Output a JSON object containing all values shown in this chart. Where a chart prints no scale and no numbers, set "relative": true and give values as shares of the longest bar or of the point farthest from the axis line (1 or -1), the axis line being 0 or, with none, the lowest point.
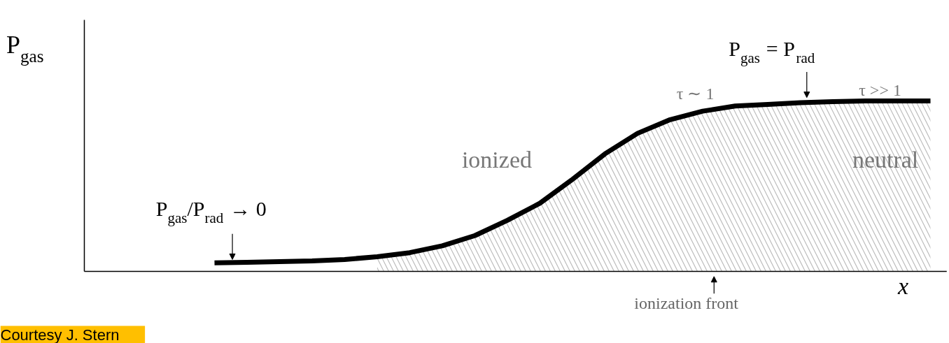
{
  "chart_data": {
    "type": "line",
    "relative": true,
    "xlabel": "x",
    "ylabel": "P$_{gas}$",
    "grid": false,
    "tick_labels": false,
    "categories": [
      null,
      null,
      null,
      null,
      null,
      null,
      null,
      null,
      null,
      null,
      null,
      null,
      null,
      null,
      null,
      null,
      null,
      null,
      null,
      null,
      null,
      null,
      null,
      null,
      null,
      null,
      null
    ],
    "series": [
      {
        "color": "#000000",
        "values": [
          null,
          null,
          null,
          null,
          0.05,
          0.053,
          0.057,
          0.061,
          0.07,
          0.086,
          0.11,
          0.15,
          0.21,
          0.3,
          0.4,
          0.54,
          0.69,
          0.81,
          0.89,
          0.94,
          0.97,
          0.98,
          0.99,
          0.996,
          1,
          1,
          1
        ]
      },
      {
        "type": "area",
        "color": "#bbbbbb",
        "values": [
          null,
          null,
          null,
          null,
          null,
          null,
          null,
          null,
          null,
          0.086,
          0.11,
          0.15,
          0.21,
          0.3,
          0.4,
          0.54,
          0.69,
          0.81,
          0.89,
          0.94,
          0.97,
          0.98,
          0.99,
          0.996,
          1,
          1,
          1
        ]
      }
    ],
    "annotations": [
      "P$_{gas}$/P$_{rad}$ → 0",
      "P$_{gas}$ = P$_{rad}$",
      "τ ∼ 1",
      "τ >> 1",
      "ionized",
      "neutral",
      "ionization front",
      "Courtesy J. Stern"
    ]
  }
}
